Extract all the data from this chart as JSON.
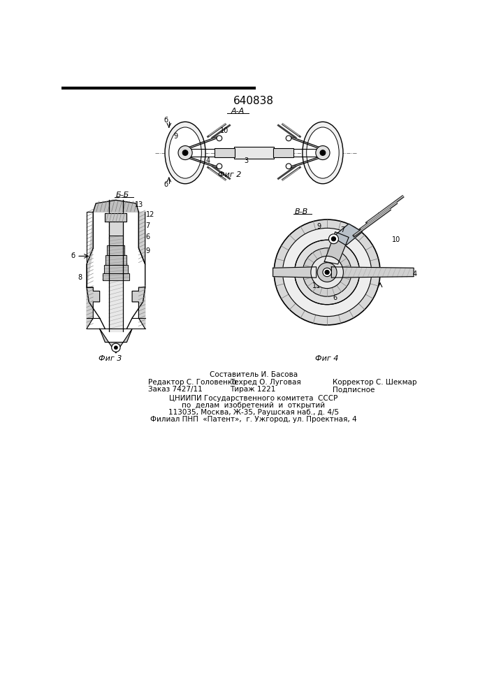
{
  "title": "640838",
  "background_color": "#ffffff",
  "line_color": "#000000",
  "fig2_label": "А-А",
  "fig2_caption": "Фиг 2",
  "fig3_caption": "Фиг 3",
  "fig4_caption": "Фиг 4",
  "bb_label": "Б-Б",
  "vv_label": "В-В",
  "footer_line1": "Составитель И. Басова",
  "footer_line2_col1": "Редактор С. Головенко",
  "footer_line2_col2": "Техред О. Луговая",
  "footer_line2_col3": "Корректор С. Шекмар",
  "footer_line3_col1": "Заказ 7427/11",
  "footer_line3_col2": "Тираж 1221",
  "footer_line3_col3": "Подписное",
  "footer_org1": "ЦНИИПИ Государственного комитета  СССР",
  "footer_org2": "по  делам  изобретений  и  открытий",
  "footer_org3": "113035, Москва, Ж-35, Раушская наб., д. 4/5",
  "footer_org4": "Филиал ПНП  «Патент»,  г. Ужгород, ул. Проектная, 4"
}
